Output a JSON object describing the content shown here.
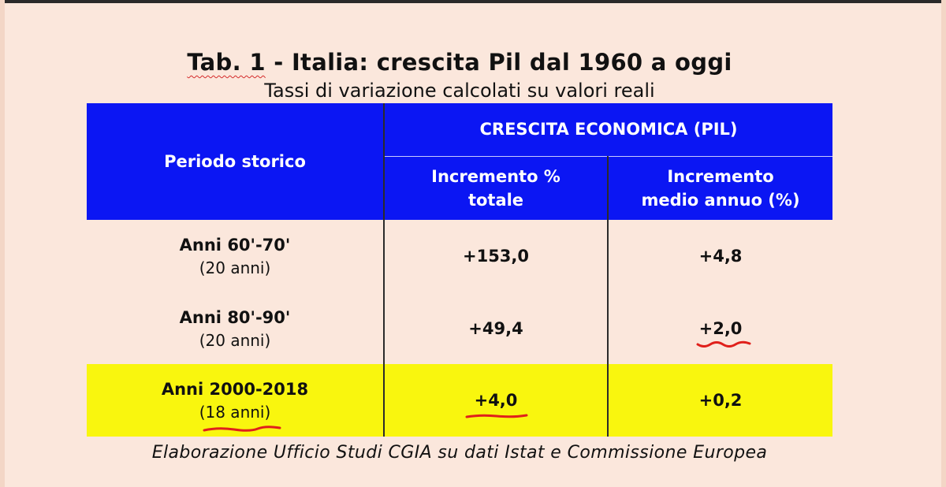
{
  "title_prefix": "Tab. 1",
  "title_rest": " - Italia: crescita Pil dal 1960 a oggi",
  "subtitle": "Tassi di variazione calcolati su valori reali",
  "table": {
    "header_period": "Periodo storico",
    "header_group": "CRESCITA ECONOMICA (PIL)",
    "header_total_line1": "Incremento %",
    "header_total_line2": "totale",
    "header_annual_line1": "Incremento",
    "header_annual_line2": "medio annuo (%)",
    "rows": [
      {
        "period": "Anni 60'-70'",
        "years": "(20 anni)",
        "total": "+153,0",
        "annual": "+4,8"
      },
      {
        "period": "Anni 80'-90'",
        "years": "(20 anni)",
        "total": "+49,4",
        "annual": "+2,0"
      },
      {
        "period": "Anni 2000-2018",
        "years_open": "(",
        "years_inner": "18 anni",
        "years_close": ")",
        "total": "+4,0",
        "annual": "+0,2"
      }
    ]
  },
  "colors": {
    "header_bg": "#0b16f3",
    "highlight_row": "#f9f60e",
    "background": "#fbe7dc",
    "annotation": "#e0201b"
  },
  "footer": "Elaborazione Ufficio Studi CGIA su dati Istat e Commissione Europea"
}
